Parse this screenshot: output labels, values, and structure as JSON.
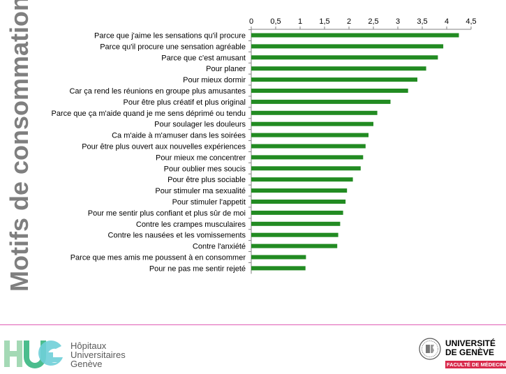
{
  "side_title": "Motifs de consommation",
  "chart_data": {
    "type": "bar",
    "orientation": "horizontal",
    "categories": [
      "Parce que j'aime les sensations qu'il procure",
      "Parce qu'il procure une sensation agréable",
      "Parce que c'est amusant",
      "Pour planer",
      "Pour mieux dormir",
      "Car ça rend les réunions en groupe plus amusantes",
      "Pour être plus créatif et plus original",
      "Parce que ça m'aide quand je me sens déprimé ou tendu",
      "Pour soulager les douleurs",
      "Ca m'aide à m'amuser dans les soirées",
      "Pour être plus ouvert aux nouvelles expériences",
      "Pour mieux me concentrer",
      "Pour oublier mes soucis",
      "Pour être plus sociable",
      "Pour stimuler ma sexualité",
      "Pour stimuler l'appetit",
      "Pour me sentir plus confiant et plus sûr de moi",
      "Contre les crampes musculaires",
      "Contre les nausées et les vomissements",
      "Contre l'anxiété",
      "Parce que mes amis me poussent à en consommer",
      "Pour ne pas me sentir rejeté"
    ],
    "values": [
      4.25,
      3.93,
      3.82,
      3.58,
      3.4,
      3.21,
      2.85,
      2.58,
      2.5,
      2.4,
      2.34,
      2.29,
      2.24,
      2.08,
      1.96,
      1.93,
      1.88,
      1.82,
      1.78,
      1.76,
      1.12,
      1.11
    ],
    "xlim": [
      0,
      4.5
    ],
    "xticks": [
      "0",
      "0,5",
      "1",
      "1,5",
      "2",
      "2,5",
      "3",
      "3,5",
      "4",
      "4,5"
    ],
    "x_axis_position": "top",
    "bar_color": "#228b22",
    "grid": false,
    "legend": "none"
  },
  "footer": {
    "left_logo": {
      "mark": "HUG",
      "lines": [
        "Hôpitaux",
        "Universitaires",
        "Genève"
      ],
      "colors": [
        "#a4d9b5",
        "#4bbd8d",
        "#6fcfd8"
      ]
    },
    "right_logo": {
      "line1": "UNIVERSITÉ",
      "line2": "DE GENÈVE",
      "line3": "FACULTÉ DE MÉDECINE",
      "accent": "#d8294b"
    },
    "divider_color": "#e05cb4"
  }
}
